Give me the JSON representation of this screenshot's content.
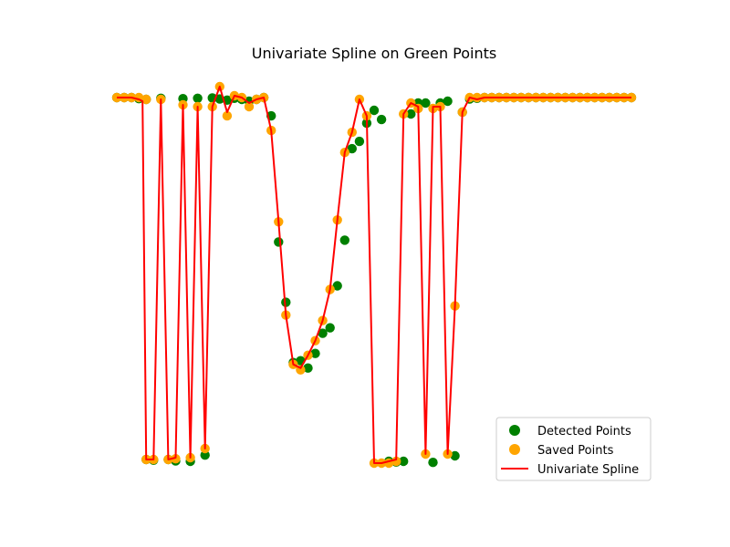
{
  "chart_data": {
    "type": "scatter",
    "title": "Univariate Spline on Green Points",
    "axes_visible": false,
    "xlim": [
      0,
      70
    ],
    "ylim": [
      0,
      100
    ],
    "legend": {
      "position": "lower-right"
    },
    "colors": {
      "detected": "#008000",
      "saved": "#ffa500",
      "spline": "#ff0000"
    },
    "series": [
      {
        "name": "Detected Points",
        "kind": "scatter",
        "color": "#008000",
        "points": [
          [
            0,
            100
          ],
          [
            1,
            100
          ],
          [
            2,
            100
          ],
          [
            3,
            99.7
          ],
          [
            4,
            99.5
          ],
          [
            6,
            99.8
          ],
          [
            4,
            1.0
          ],
          [
            5,
            0.8
          ],
          [
            7,
            1.0
          ],
          [
            8,
            0.6
          ],
          [
            9,
            99.7
          ],
          [
            10,
            0.5
          ],
          [
            11,
            99.8
          ],
          [
            12,
            2.2
          ],
          [
            13,
            99.9
          ],
          [
            14,
            99.6
          ],
          [
            15,
            99.3
          ],
          [
            16,
            99.8
          ],
          [
            17,
            99.5
          ],
          [
            18,
            99.0
          ],
          [
            19,
            99.5
          ],
          [
            20,
            100
          ],
          [
            21,
            95
          ],
          [
            22,
            60.5
          ],
          [
            23,
            44
          ],
          [
            24,
            27.5
          ],
          [
            25,
            28
          ],
          [
            26,
            26
          ],
          [
            27,
            30
          ],
          [
            28,
            35.5
          ],
          [
            29,
            37
          ],
          [
            30,
            48.5
          ],
          [
            31,
            61
          ],
          [
            32,
            86
          ],
          [
            33,
            88
          ],
          [
            34,
            93
          ],
          [
            35,
            96.5
          ],
          [
            36,
            94
          ],
          [
            37,
            0.5
          ],
          [
            38,
            0.3
          ],
          [
            39,
            0.5
          ],
          [
            40,
            95.5
          ],
          [
            41,
            98.5
          ],
          [
            42,
            98.5
          ],
          [
            43,
            0.2
          ],
          [
            44,
            98.5
          ],
          [
            45,
            99
          ],
          [
            46,
            2
          ],
          [
            47,
            96
          ],
          [
            48,
            99.6
          ],
          [
            49,
            99.8
          ],
          [
            50,
            100
          ],
          [
            51,
            100
          ],
          [
            52,
            100
          ],
          [
            53,
            100
          ],
          [
            54,
            100
          ],
          [
            55,
            100
          ],
          [
            56,
            100
          ],
          [
            57,
            100
          ],
          [
            58,
            100
          ],
          [
            59,
            100
          ],
          [
            60,
            100
          ],
          [
            61,
            100
          ],
          [
            62,
            100
          ],
          [
            63,
            100
          ],
          [
            64,
            100
          ],
          [
            65,
            100
          ],
          [
            66,
            100
          ],
          [
            67,
            100
          ],
          [
            68,
            100
          ],
          [
            69,
            100
          ],
          [
            70,
            100
          ]
        ]
      },
      {
        "name": "Saved Points",
        "kind": "scatter",
        "color": "#ffa500",
        "points": [
          [
            0,
            100
          ],
          [
            1,
            100
          ],
          [
            2,
            100
          ],
          [
            3,
            100
          ],
          [
            4,
            99.5
          ],
          [
            4,
            1
          ],
          [
            5,
            1
          ],
          [
            6,
            99.5
          ],
          [
            7,
            1
          ],
          [
            8,
            1.2
          ],
          [
            9,
            98
          ],
          [
            10,
            1.5
          ],
          [
            11,
            97.5
          ],
          [
            12,
            4
          ],
          [
            13,
            97.5
          ],
          [
            14,
            103
          ],
          [
            15,
            95
          ],
          [
            16,
            100.5
          ],
          [
            17,
            100
          ],
          [
            18,
            97.5
          ],
          [
            19,
            99.5
          ],
          [
            20,
            100
          ],
          [
            21,
            91
          ],
          [
            22,
            66
          ],
          [
            23,
            40.5
          ],
          [
            24,
            27
          ],
          [
            25,
            25.5
          ],
          [
            26,
            29.5
          ],
          [
            27,
            33.5
          ],
          [
            28,
            39
          ],
          [
            29,
            47.5
          ],
          [
            30,
            66.5
          ],
          [
            31,
            85
          ],
          [
            32,
            90.5
          ],
          [
            33,
            99.5
          ],
          [
            34,
            95
          ],
          [
            35,
            0
          ],
          [
            36,
            0
          ],
          [
            37,
            0
          ],
          [
            38,
            0.5
          ],
          [
            39,
            95.5
          ],
          [
            40,
            98.5
          ],
          [
            41,
            97
          ],
          [
            42,
            2.5
          ],
          [
            43,
            97
          ],
          [
            44,
            97.5
          ],
          [
            45,
            2.5
          ],
          [
            46,
            43
          ],
          [
            47,
            96
          ],
          [
            48,
            100
          ],
          [
            49,
            100
          ],
          [
            50,
            100
          ],
          [
            51,
            100
          ],
          [
            52,
            100
          ],
          [
            53,
            100
          ],
          [
            54,
            100
          ],
          [
            55,
            100
          ],
          [
            56,
            100
          ],
          [
            57,
            100
          ],
          [
            58,
            100
          ],
          [
            59,
            100
          ],
          [
            60,
            100
          ],
          [
            61,
            100
          ],
          [
            62,
            100
          ],
          [
            63,
            100
          ],
          [
            64,
            100
          ],
          [
            65,
            100
          ],
          [
            66,
            100
          ],
          [
            67,
            100
          ],
          [
            68,
            100
          ],
          [
            69,
            100
          ],
          [
            70,
            100
          ]
        ]
      },
      {
        "name": "Univariate Spline",
        "kind": "line",
        "color": "#ff0000",
        "points": [
          [
            0,
            100
          ],
          [
            1,
            100
          ],
          [
            2,
            100
          ],
          [
            3,
            99.5
          ],
          [
            3.5,
            99
          ],
          [
            4,
            1.0
          ],
          [
            5,
            1.0
          ],
          [
            6,
            99.5
          ],
          [
            7,
            1.0
          ],
          [
            8,
            1.5
          ],
          [
            9,
            98
          ],
          [
            10,
            1.5
          ],
          [
            11,
            97.5
          ],
          [
            12,
            4
          ],
          [
            13,
            97.5
          ],
          [
            14,
            103
          ],
          [
            15,
            96
          ],
          [
            16,
            100.5
          ],
          [
            17,
            100
          ],
          [
            18,
            98.5
          ],
          [
            19,
            99.5
          ],
          [
            20,
            100
          ],
          [
            21,
            91
          ],
          [
            22,
            66
          ],
          [
            23,
            40.5
          ],
          [
            24,
            27
          ],
          [
            25,
            26
          ],
          [
            26,
            29.5
          ],
          [
            27,
            33.5
          ],
          [
            28,
            39
          ],
          [
            29,
            47.5
          ],
          [
            30,
            66.5
          ],
          [
            31,
            85
          ],
          [
            32,
            90.5
          ],
          [
            33,
            99.5
          ],
          [
            34,
            95
          ],
          [
            35,
            0
          ],
          [
            36,
            0
          ],
          [
            37,
            0.5
          ],
          [
            38,
            1
          ],
          [
            39,
            95.5
          ],
          [
            40,
            98.5
          ],
          [
            41,
            97.5
          ],
          [
            42,
            2.5
          ],
          [
            43,
            97.5
          ],
          [
            44,
            97.5
          ],
          [
            45,
            2.5
          ],
          [
            46,
            43
          ],
          [
            47,
            96
          ],
          [
            48,
            100
          ],
          [
            49,
            99.5
          ],
          [
            50,
            100
          ],
          [
            52,
            100
          ],
          [
            55,
            100
          ],
          [
            60,
            100
          ],
          [
            65,
            100
          ],
          [
            70,
            100
          ]
        ]
      }
    ]
  }
}
